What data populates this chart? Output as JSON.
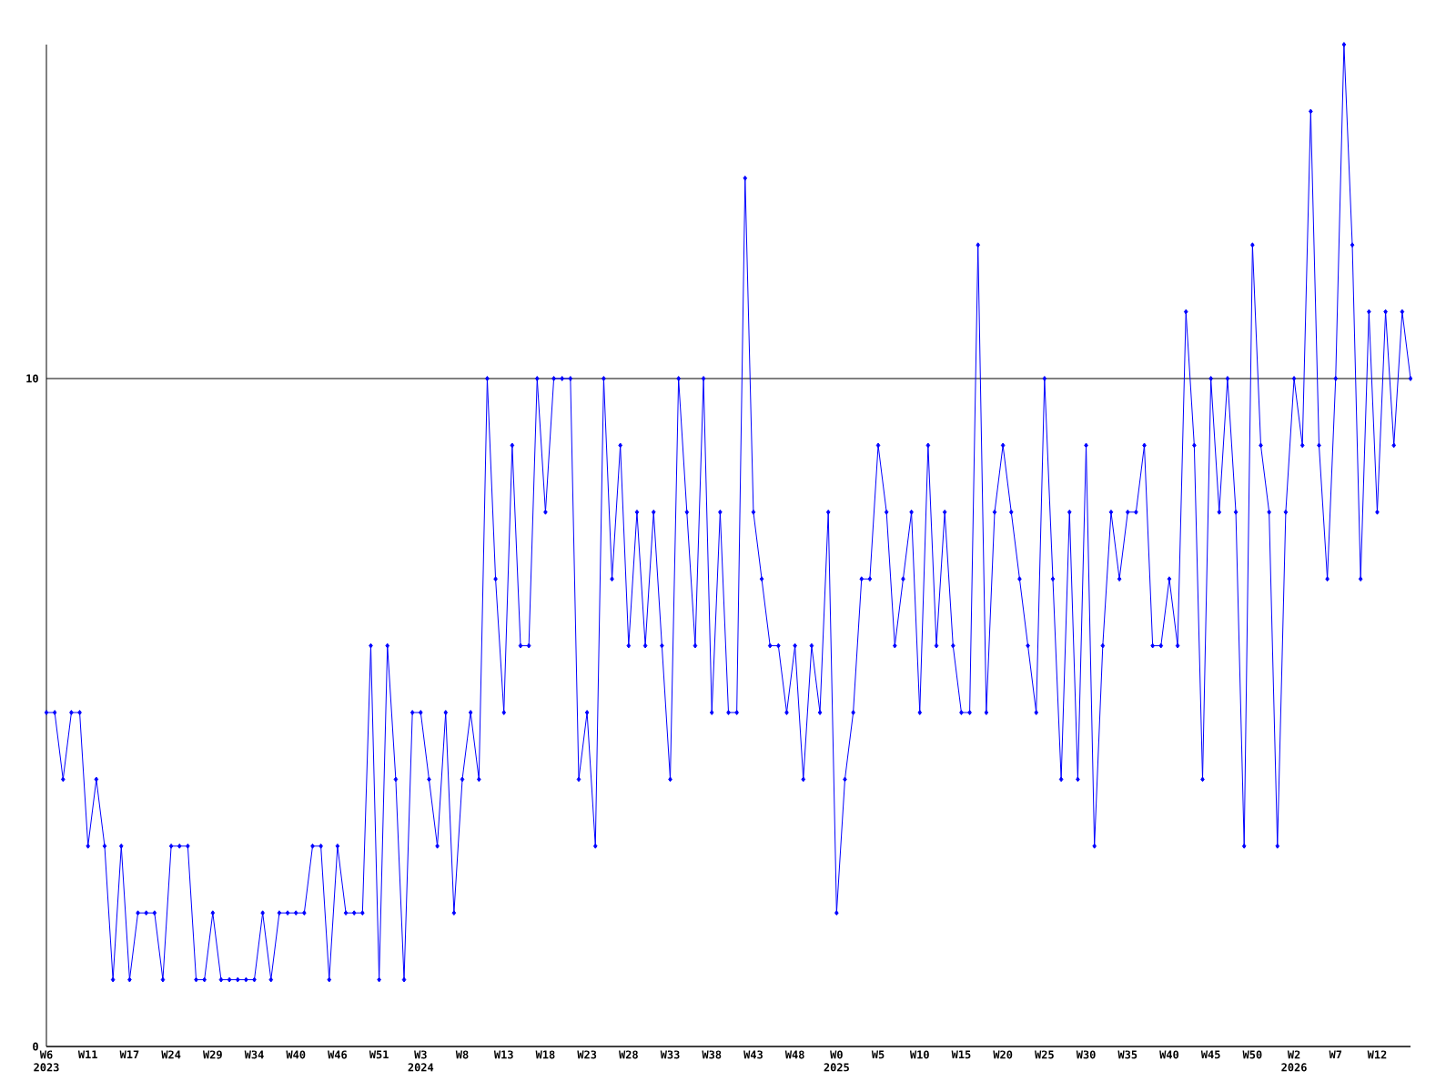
{
  "chart_data": {
    "type": "line",
    "categories": [
      "W6 2023",
      null,
      null,
      null,
      null,
      "W11",
      null,
      null,
      null,
      null,
      "W17",
      null,
      null,
      null,
      null,
      "W24",
      null,
      null,
      null,
      null,
      "W29",
      null,
      null,
      null,
      null,
      "W34",
      null,
      null,
      null,
      null,
      "W40",
      null,
      null,
      null,
      null,
      "W46",
      null,
      null,
      null,
      null,
      "W51",
      null,
      null,
      null,
      null,
      "W3 2024",
      null,
      null,
      null,
      null,
      "W8",
      null,
      null,
      null,
      null,
      "W13",
      null,
      null,
      null,
      null,
      "W18",
      null,
      null,
      null,
      null,
      "W23",
      null,
      null,
      null,
      null,
      "W28",
      null,
      null,
      null,
      null,
      "W33",
      null,
      null,
      null,
      null,
      "W38",
      null,
      null,
      null,
      null,
      "W43",
      null,
      null,
      null,
      null,
      "W48",
      null,
      null,
      null,
      null,
      "W0 2025",
      null,
      null,
      null,
      null,
      "W5",
      null,
      null,
      null,
      null,
      "W10",
      null,
      null,
      null,
      null,
      "W15",
      null,
      null,
      null,
      null,
      "W20",
      null,
      null,
      null,
      null,
      "W25",
      null,
      null,
      null,
      null,
      "W30",
      null,
      null,
      null,
      null,
      "W35",
      null,
      null,
      null,
      null,
      "W40",
      null,
      null,
      null,
      null,
      "W45",
      null,
      null,
      null,
      null,
      "W50",
      null,
      null,
      null,
      null,
      "W2 2026",
      null,
      null,
      null,
      null,
      "W7",
      null,
      null,
      null,
      null,
      "W12",
      null,
      null,
      null,
      null
    ],
    "values": [
      5,
      5,
      4,
      5,
      5,
      3,
      4,
      3,
      1,
      3,
      1,
      2,
      2,
      2,
      1,
      3,
      3,
      3,
      1,
      1,
      2,
      1,
      1,
      1,
      1,
      1,
      2,
      1,
      2,
      2,
      2,
      2,
      3,
      3,
      1,
      3,
      2,
      2,
      2,
      6,
      1,
      6,
      4,
      1,
      5,
      5,
      4,
      3,
      5,
      2,
      4,
      5,
      4,
      10,
      7,
      5,
      9,
      6,
      6,
      10,
      8,
      10,
      10,
      10,
      4,
      5,
      3,
      10,
      7,
      9,
      6,
      8,
      6,
      8,
      6,
      4,
      10,
      8,
      6,
      10,
      5,
      8,
      5,
      5,
      13,
      8,
      7,
      6,
      6,
      5,
      6,
      4,
      6,
      5,
      8,
      2,
      4,
      5,
      7,
      7,
      9,
      8,
      6,
      7,
      8,
      5,
      9,
      6,
      8,
      6,
      5,
      5,
      12,
      5,
      8,
      9,
      8,
      7,
      6,
      5,
      10,
      7,
      4,
      8,
      4,
      9,
      3,
      6,
      8,
      7,
      8,
      8,
      9,
      6,
      6,
      7,
      6,
      11,
      9,
      4,
      10,
      8,
      10,
      8,
      3,
      12,
      9,
      8,
      3,
      8,
      10,
      9,
      14,
      9,
      7,
      10,
      15,
      12,
      7,
      11,
      8,
      11,
      9,
      11,
      10
    ],
    "color": "#0000ff",
    "marker": "diamond",
    "grid": "y",
    "ylim": [
      0,
      15
    ],
    "yticks": [
      0,
      10
    ]
  }
}
